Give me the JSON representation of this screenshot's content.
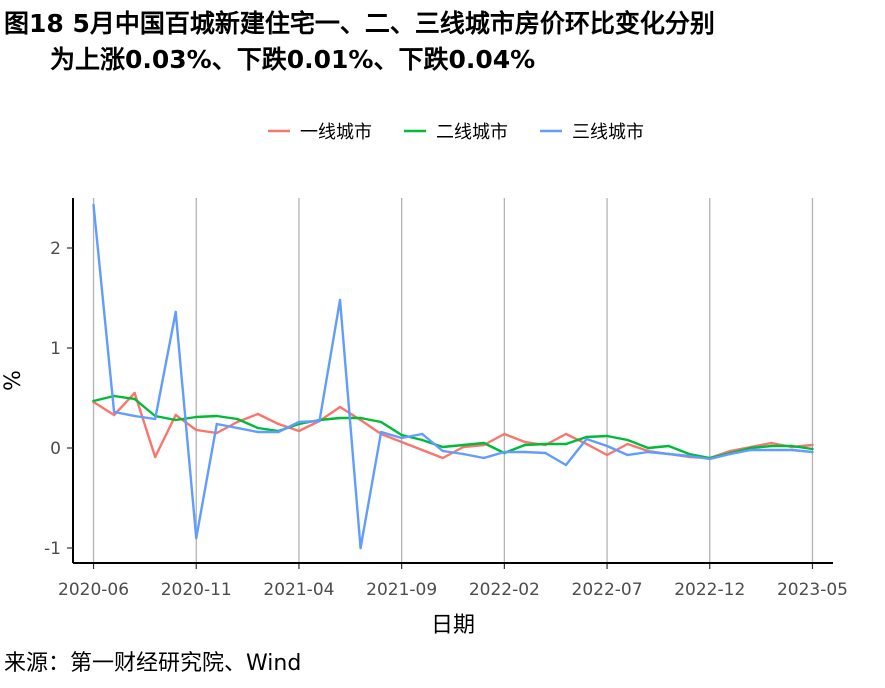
{
  "title": {
    "line1": "图18 5月中国百城新建住宅一、二、三线城市房价环比变化分别",
    "line2": "为上涨0.03%、下跌0.01%、下跌0.04%"
  },
  "source": "来源：第一财经研究院、Wind",
  "chart_data": {
    "type": "line",
    "xlabel": "日期",
    "ylabel": "%",
    "x_ticks": [
      "2020-06",
      "2020-11",
      "2021-04",
      "2021-09",
      "2022-02",
      "2022-07",
      "2022-12",
      "2023-05"
    ],
    "y_ticks": [
      "-1",
      "0",
      "1",
      "2"
    ],
    "ylim": [
      -1.15,
      2.5
    ],
    "x_range": [
      "2020-05",
      "2023-06"
    ],
    "grid": "vertical lines at x ticks",
    "legend_position": "top-center",
    "x": [
      "2020-06",
      "2020-07",
      "2020-08",
      "2020-09",
      "2020-10",
      "2020-11",
      "2020-12",
      "2021-01",
      "2021-02",
      "2021-03",
      "2021-04",
      "2021-05",
      "2021-06",
      "2021-07",
      "2021-08",
      "2021-09",
      "2021-10",
      "2021-11",
      "2021-12",
      "2022-01",
      "2022-02",
      "2022-03",
      "2022-04",
      "2022-05",
      "2022-06",
      "2022-07",
      "2022-08",
      "2022-09",
      "2022-10",
      "2022-11",
      "2022-12",
      "2023-01",
      "2023-02",
      "2023-03",
      "2023-04",
      "2023-05"
    ],
    "series": [
      {
        "name": "一线城市",
        "color": "#F8766D",
        "values": [
          0.46,
          0.33,
          0.55,
          -0.09,
          0.33,
          0.18,
          0.15,
          0.26,
          0.34,
          0.24,
          0.17,
          0.27,
          0.41,
          0.28,
          0.14,
          0.06,
          -0.02,
          -0.1,
          0.01,
          0.03,
          0.14,
          0.06,
          0.03,
          0.14,
          0.04,
          -0.07,
          0.04,
          -0.03,
          -0.06,
          -0.09,
          -0.1,
          -0.03,
          0.01,
          0.05,
          0.01,
          0.03
        ]
      },
      {
        "name": "二线城市",
        "color": "#00BA38",
        "values": [
          0.47,
          0.52,
          0.49,
          0.32,
          0.28,
          0.31,
          0.32,
          0.29,
          0.2,
          0.17,
          0.24,
          0.28,
          0.3,
          0.3,
          0.26,
          0.13,
          0.08,
          0.01,
          0.03,
          0.05,
          -0.05,
          0.03,
          0.04,
          0.04,
          0.11,
          0.12,
          0.08,
          0.0,
          0.02,
          -0.06,
          -0.1,
          -0.05,
          0.0,
          0.02,
          0.02,
          -0.01
        ]
      },
      {
        "name": "三线城市",
        "color": "#619CFF",
        "values": [
          2.43,
          0.36,
          0.32,
          0.29,
          1.36,
          -0.9,
          0.24,
          0.2,
          0.16,
          0.16,
          0.26,
          0.27,
          1.48,
          -1.0,
          0.16,
          0.1,
          0.14,
          -0.03,
          -0.06,
          -0.1,
          -0.04,
          -0.04,
          -0.05,
          -0.17,
          0.09,
          0.02,
          -0.07,
          -0.04,
          -0.06,
          -0.08,
          -0.11,
          -0.06,
          -0.02,
          -0.02,
          -0.02,
          -0.04
        ]
      }
    ]
  }
}
